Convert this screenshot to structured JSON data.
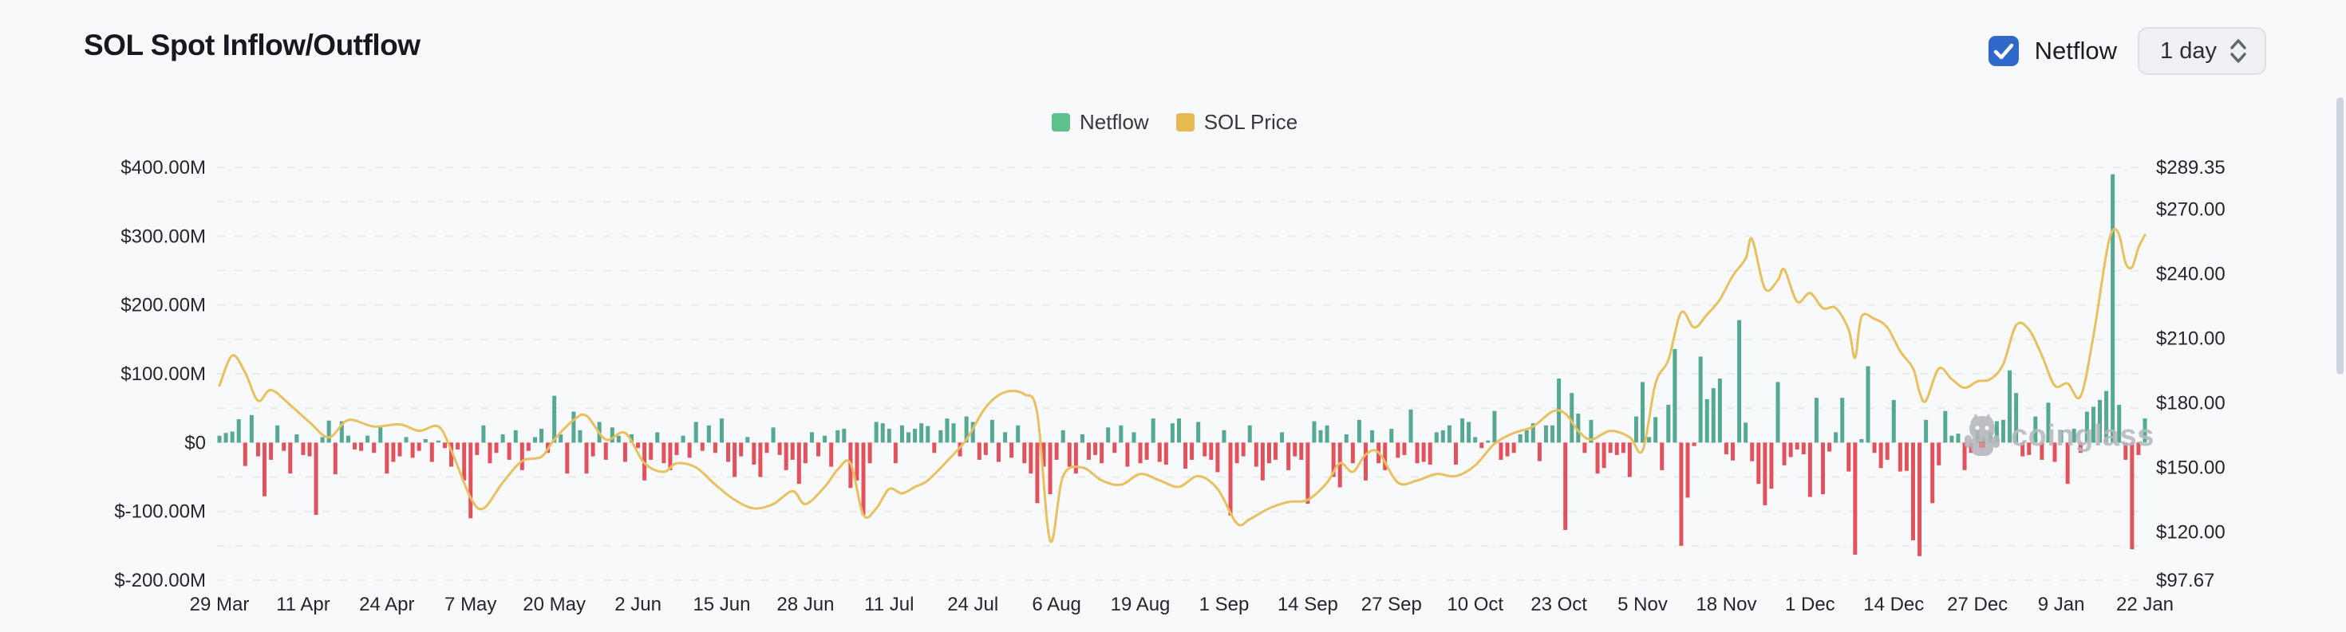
{
  "header": {
    "title": "SOL Spot Inflow/Outflow",
    "netflow_toggle": {
      "label": "Netflow",
      "checked": true
    },
    "interval_select": {
      "value": "1 day"
    }
  },
  "legend": [
    {
      "label": "Netflow",
      "color": "#5ec08b"
    },
    {
      "label": "SOL Price",
      "color": "#e6ba52"
    }
  ],
  "watermark": {
    "text": "coinglass"
  },
  "colors": {
    "background": "#f8f9fb",
    "bar_positive": "#55a892",
    "bar_negative": "#e2525c",
    "price_line": "#e9c05f",
    "gridline": "#e8eaec",
    "axis_text": "#23262c",
    "checkbox_blue": "#3069c9",
    "watermark_gray": "#b6b9be"
  },
  "chart_data": {
    "type": "bar+line",
    "title": "SOL Spot Inflow/Outflow",
    "x_tick_labels": [
      "29 Mar",
      "11 Apr",
      "24 Apr",
      "7 May",
      "20 May",
      "2 Jun",
      "15 Jun",
      "28 Jun",
      "11 Jul",
      "24 Jul",
      "6 Aug",
      "19 Aug",
      "1 Sep",
      "14 Sep",
      "27 Sep",
      "10 Oct",
      "23 Oct",
      "5 Nov",
      "18 Nov",
      "1 Dec",
      "14 Dec",
      "27 Dec",
      "9 Jan",
      "22 Jan"
    ],
    "x_tick_interval_days": 13,
    "left_axis": {
      "labels": [
        "$400.00M",
        "$300.00M",
        "$200.00M",
        "$100.00M",
        "$0",
        "$-100.00M",
        "$-200.00M"
      ],
      "values": [
        400,
        300,
        200,
        100,
        0,
        -100,
        -200
      ],
      "min": -200,
      "max": 400,
      "unit": "USD millions",
      "grid_step": 50,
      "grid_style": "dashed"
    },
    "right_axis": {
      "labels": [
        "$289.35",
        "$270.00",
        "$240.00",
        "$210.00",
        "$180.00",
        "$150.00",
        "$120.00",
        "$97.67"
      ],
      "values": [
        289.35,
        270,
        240,
        210,
        180,
        150,
        120,
        97.67
      ],
      "min": 97.67,
      "max": 289.35,
      "unit": "USD"
    },
    "series": [
      {
        "name": "Netflow",
        "type": "bar",
        "unit": "$M",
        "color_positive": "#55a892",
        "color_negative": "#e2525c",
        "first_day_label": "29 Mar",
        "last_day_label": "22 Jan",
        "values": [
          10,
          14,
          16,
          34,
          -34,
          40,
          -20,
          -78,
          -25,
          25,
          -12,
          -45,
          12,
          -18,
          -20,
          -105,
          8,
          32,
          -46,
          31,
          10,
          -10,
          -12,
          10,
          -15,
          22,
          -45,
          -28,
          -20,
          8,
          -22,
          -12,
          5,
          -28,
          3,
          -8,
          -35,
          -10,
          -55,
          -110,
          -18,
          25,
          -30,
          -15,
          12,
          -25,
          18,
          -40,
          -12,
          8,
          20,
          -15,
          68,
          12,
          -45,
          45,
          18,
          -45,
          -20,
          30,
          -25,
          22,
          10,
          -28,
          12,
          -8,
          -55,
          -25,
          15,
          -30,
          -40,
          -18,
          10,
          -22,
          30,
          -12,
          25,
          -15,
          35,
          -28,
          -50,
          -20,
          8,
          -32,
          -50,
          -15,
          22,
          -18,
          -40,
          -25,
          -60,
          -30,
          15,
          -20,
          10,
          -35,
          18,
          20,
          -66,
          -55,
          -105,
          -30,
          30,
          28,
          20,
          -30,
          25,
          15,
          20,
          28,
          24,
          -15,
          18,
          35,
          28,
          -20,
          38,
          30,
          -25,
          -18,
          33,
          -28,
          15,
          -22,
          25,
          -30,
          -45,
          -88,
          -35,
          -75,
          -25,
          18,
          -35,
          -45,
          12,
          -25,
          -18,
          -30,
          22,
          -15,
          25,
          -35,
          15,
          -30,
          -25,
          35,
          -28,
          -32,
          28,
          35,
          -38,
          -25,
          30,
          -20,
          -25,
          -43,
          18,
          -106,
          -30,
          -20,
          25,
          -35,
          -55,
          -30,
          -25,
          15,
          -40,
          -20,
          -25,
          -89,
          31,
          18,
          25,
          -50,
          -65,
          12,
          -30,
          33,
          -55,
          18,
          -30,
          -40,
          20,
          -22,
          -18,
          48,
          -30,
          -28,
          -32,
          15,
          18,
          25,
          -32,
          35,
          30,
          8,
          -8,
          3,
          46,
          -25,
          -20,
          -15,
          12,
          18,
          28,
          -27,
          25,
          25,
          93,
          -127,
          72,
          42,
          -15,
          33,
          -45,
          -37,
          -15,
          -18,
          -15,
          -50,
          38,
          88,
          8,
          37,
          -40,
          55,
          136,
          -150,
          -80,
          -5,
          125,
          63,
          79,
          93,
          -17,
          -26,
          178,
          29,
          -27,
          -60,
          -91,
          -67,
          88,
          -33,
          -21,
          -10,
          -17,
          -79,
          65,
          -75,
          -13,
          15,
          65,
          -42,
          -163,
          5,
          111,
          -15,
          -37,
          -25,
          62,
          -42,
          -41,
          -142,
          -165,
          33,
          -88,
          -33,
          46,
          10,
          13,
          -40,
          -15,
          20,
          8,
          15,
          31,
          33,
          105,
          72,
          -20,
          -18,
          38,
          -25,
          58,
          -28,
          18,
          -60,
          20,
          -15,
          45,
          52,
          62,
          75,
          390,
          55,
          -25,
          -155,
          -18,
          35
        ]
      },
      {
        "name": "SOL Price",
        "type": "line",
        "unit": "USD",
        "color": "#e9c05f",
        "control_points": [
          [
            0,
            188
          ],
          [
            2,
            202
          ],
          [
            4,
            194
          ],
          [
            6,
            181
          ],
          [
            8,
            186
          ],
          [
            11,
            179
          ],
          [
            14,
            171
          ],
          [
            17,
            164
          ],
          [
            20,
            172
          ],
          [
            24,
            169
          ],
          [
            28,
            170
          ],
          [
            31,
            167
          ],
          [
            34,
            169
          ],
          [
            36,
            158
          ],
          [
            39,
            136
          ],
          [
            41,
            131
          ],
          [
            44,
            143
          ],
          [
            47,
            153
          ],
          [
            50,
            155
          ],
          [
            52,
            163
          ],
          [
            55,
            172
          ],
          [
            57,
            174
          ],
          [
            60,
            163
          ],
          [
            63,
            166
          ],
          [
            66,
            152
          ],
          [
            69,
            148
          ],
          [
            71,
            152
          ],
          [
            74,
            150
          ],
          [
            77,
            142
          ],
          [
            80,
            135
          ],
          [
            83,
            131
          ],
          [
            86,
            133
          ],
          [
            89,
            139
          ],
          [
            91,
            133
          ],
          [
            94,
            141
          ],
          [
            96,
            149
          ],
          [
            98,
            152
          ],
          [
            100,
            128
          ],
          [
            102,
            131
          ],
          [
            104,
            140
          ],
          [
            106,
            138
          ],
          [
            108,
            141
          ],
          [
            110,
            144
          ],
          [
            113,
            153
          ],
          [
            116,
            163
          ],
          [
            119,
            178
          ],
          [
            122,
            185
          ],
          [
            125,
            184
          ],
          [
            127,
            175
          ],
          [
            129,
            116
          ],
          [
            131,
            146
          ],
          [
            134,
            150
          ],
          [
            137,
            144
          ],
          [
            140,
            142
          ],
          [
            143,
            147
          ],
          [
            146,
            144
          ],
          [
            149,
            141
          ],
          [
            152,
            146
          ],
          [
            155,
            140
          ],
          [
            158,
            124
          ],
          [
            160,
            126
          ],
          [
            163,
            131
          ],
          [
            166,
            134
          ],
          [
            169,
            135
          ],
          [
            172,
            143
          ],
          [
            174,
            152
          ],
          [
            176,
            148
          ],
          [
            178,
            156
          ],
          [
            180,
            157
          ],
          [
            183,
            143
          ],
          [
            186,
            144
          ],
          [
            189,
            147
          ],
          [
            192,
            146
          ],
          [
            195,
            151
          ],
          [
            198,
            161
          ],
          [
            201,
            166
          ],
          [
            204,
            169
          ],
          [
            207,
            176
          ],
          [
            209,
            175
          ],
          [
            211,
            167
          ],
          [
            213,
            163
          ],
          [
            216,
            167
          ],
          [
            219,
            164
          ],
          [
            221,
            158
          ],
          [
            223,
            189
          ],
          [
            225,
            200
          ],
          [
            227,
            222
          ],
          [
            229,
            215
          ],
          [
            231,
            221
          ],
          [
            233,
            228
          ],
          [
            235,
            239
          ],
          [
            237,
            247
          ],
          [
            238,
            256
          ],
          [
            240,
            233
          ],
          [
            242,
            237
          ],
          [
            243,
            242
          ],
          [
            245,
            227
          ],
          [
            247,
            231
          ],
          [
            249,
            224
          ],
          [
            251,
            224
          ],
          [
            253,
            214
          ],
          [
            254,
            201
          ],
          [
            255,
            220
          ],
          [
            257,
            219
          ],
          [
            259,
            215
          ],
          [
            261,
            204
          ],
          [
            263,
            196
          ],
          [
            264,
            185
          ],
          [
            265,
            181
          ],
          [
            267,
            196
          ],
          [
            269,
            191
          ],
          [
            271,
            187
          ],
          [
            273,
            190
          ],
          [
            275,
            191
          ],
          [
            277,
            198
          ],
          [
            279,
            216
          ],
          [
            281,
            214
          ],
          [
            283,
            202
          ],
          [
            285,
            188
          ],
          [
            287,
            189
          ],
          [
            289,
            183
          ],
          [
            291,
            211
          ],
          [
            293,
            249
          ],
          [
            294,
            260
          ],
          [
            295,
            258
          ],
          [
            296,
            245
          ],
          [
            297,
            243
          ],
          [
            298,
            252
          ],
          [
            299,
            258
          ]
        ]
      }
    ]
  }
}
